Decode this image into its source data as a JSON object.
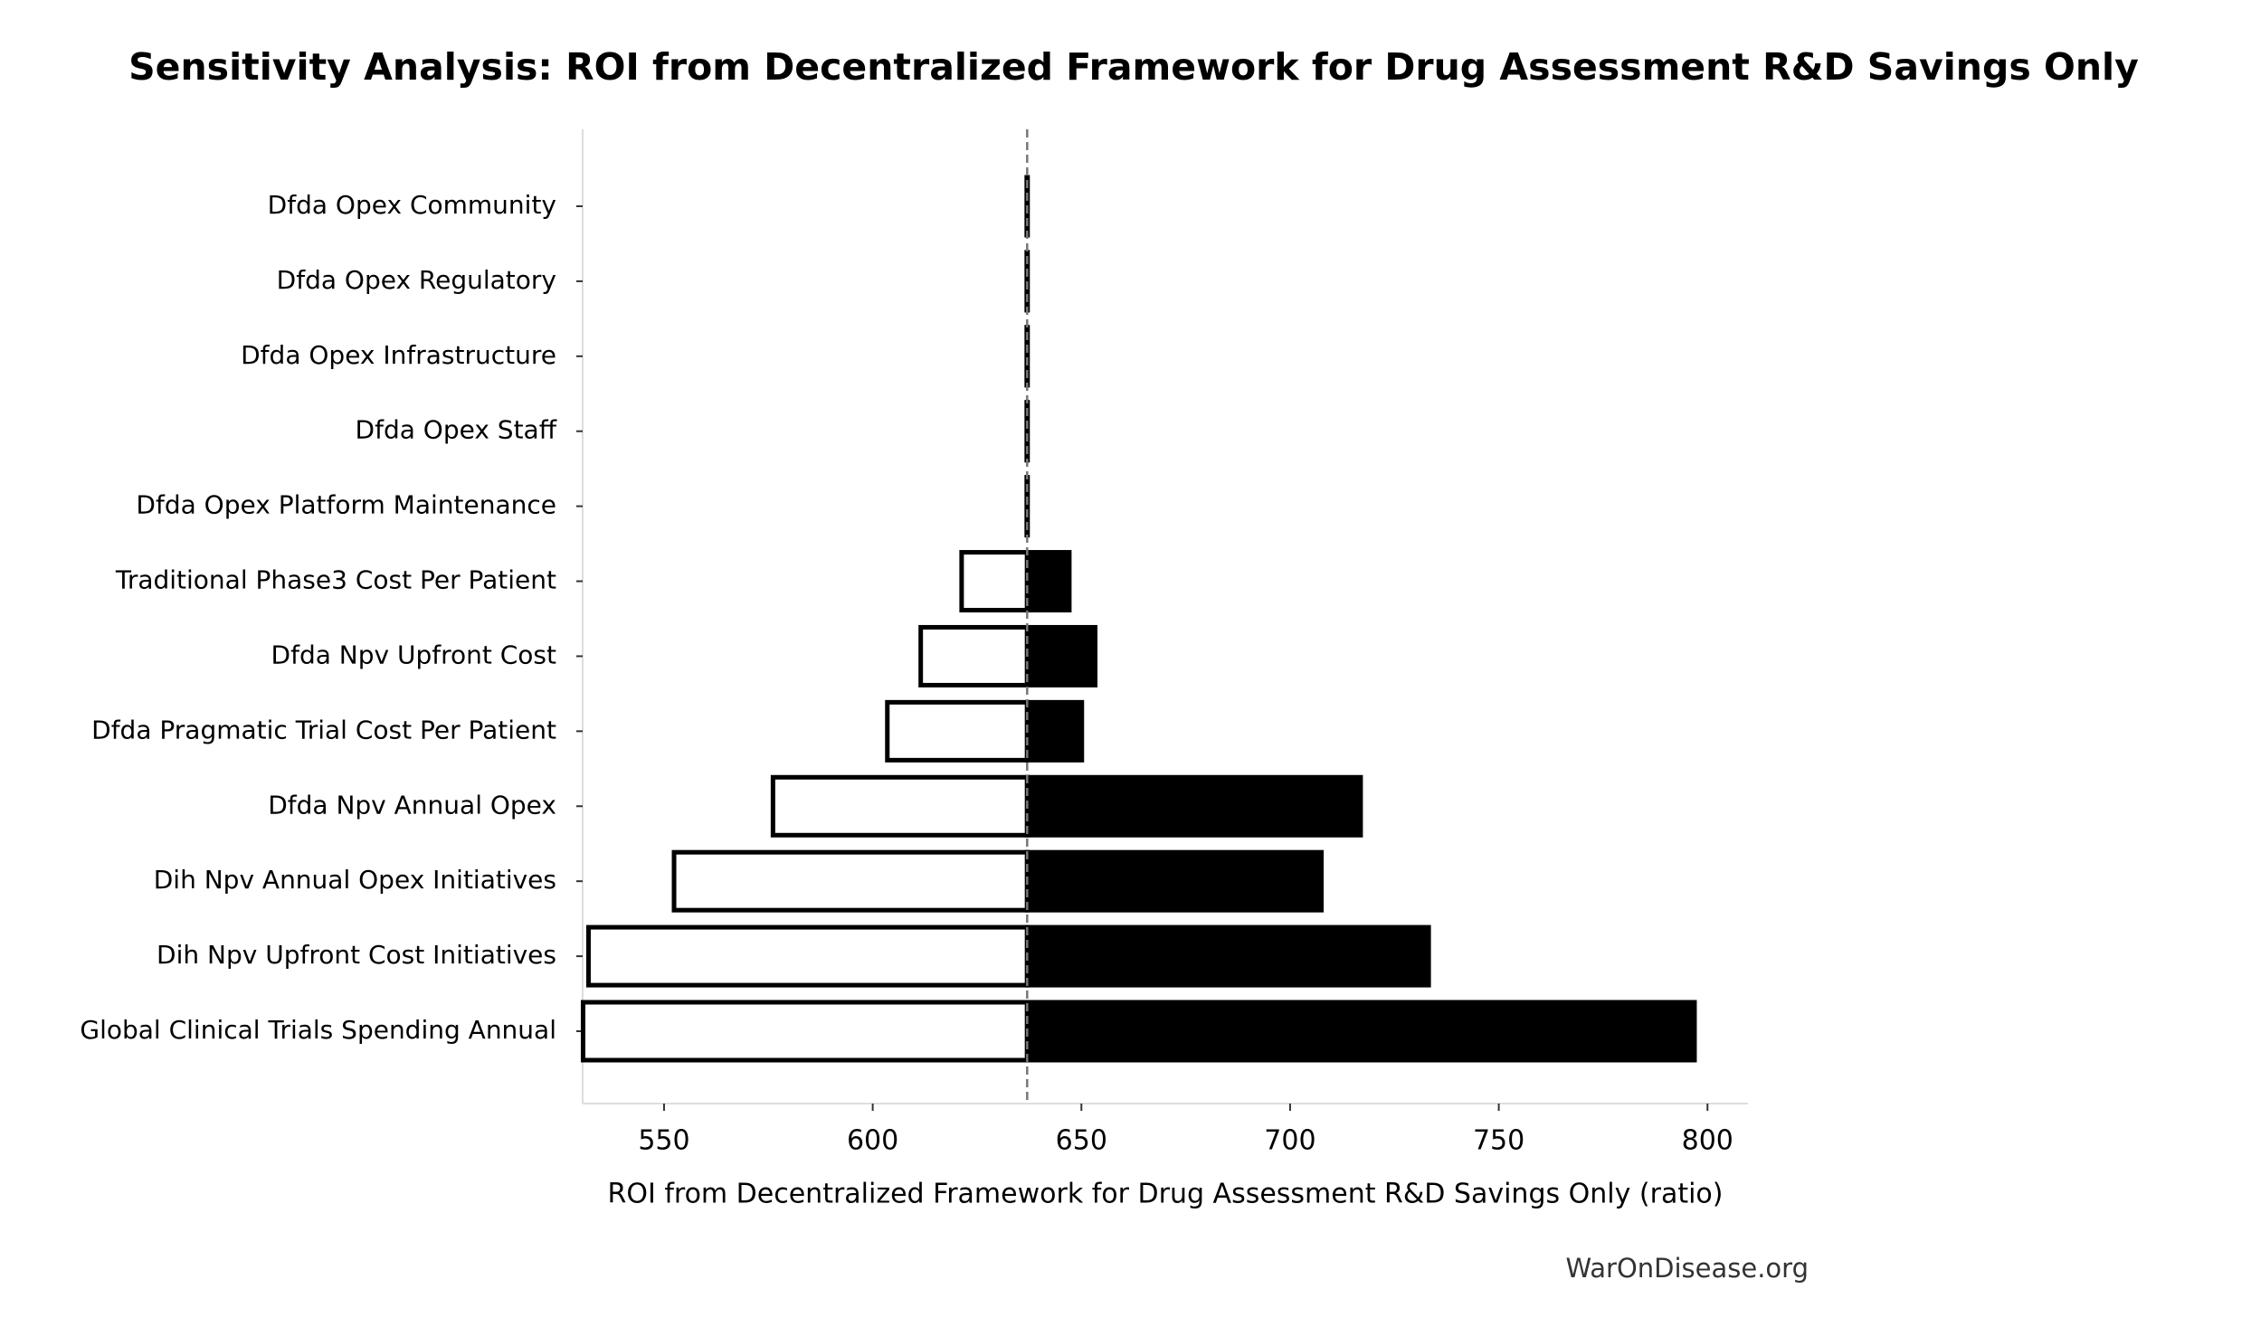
{
  "chart_data": {
    "type": "tornado",
    "title": "Sensitivity Analysis: ROI from Decentralized Framework for Drug Assessment R&D Savings Only",
    "x_label": "ROI from Decentralized Framework for Drug Assessment R&D Savings Only (ratio)",
    "footer": "WarOnDisease.org",
    "categories": [
      "Dfda Opex Community",
      "Dfda Opex Regulatory",
      "Dfda Opex Infrastructure",
      "Dfda Opex Staff",
      "Dfda Opex Platform Maintenance",
      "Traditional Phase3 Cost Per Patient",
      "Dfda Npv Upfront Cost",
      "Dfda Pragmatic Trial Cost Per Patient",
      "Dfda Npv Annual Opex",
      "Dih Npv Annual Opex Initiatives",
      "Dih Npv Upfront Cost Initiatives",
      "Global Clinical Trials Spending Annual"
    ],
    "baseline": 637,
    "low": [
      636.9,
      636.9,
      636.9,
      636.9,
      636.9,
      621.3,
      611.5,
      603.5,
      576.1,
      552.4,
      531.9,
      530.6
    ],
    "high": [
      637.1,
      637.1,
      637.1,
      637.1,
      637.1,
      647.1,
      653.3,
      650.1,
      716.9,
      707.5,
      733.2,
      796.9
    ],
    "low_color": "#ffffff",
    "high_color": "#000000",
    "xlim": [
      530.5,
      809.7
    ],
    "xticks": [
      550,
      600,
      650,
      700,
      750,
      800
    ]
  }
}
